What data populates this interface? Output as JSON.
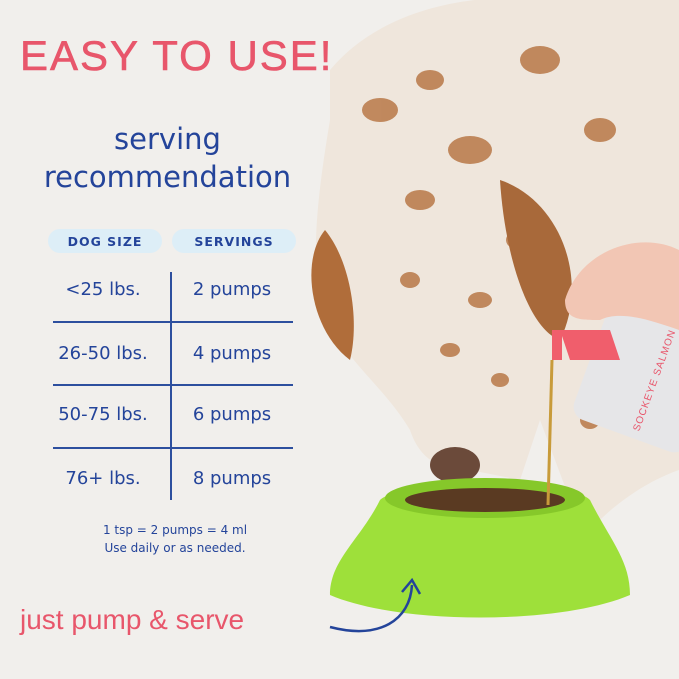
{
  "headline": "EASY TO USE!",
  "subtitle": [
    "serving",
    "recommendation"
  ],
  "table": {
    "headers": [
      "DOG SIZE",
      "SERVINGS"
    ],
    "rows": [
      {
        "size": "<25 lbs.",
        "servings": "2 pumps"
      },
      {
        "size": "26-50  lbs.",
        "servings": "4 pumps"
      },
      {
        "size": "50-75  lbs.",
        "servings": "6 pumps"
      },
      {
        "size": "76+ lbs.",
        "servings": "8 pumps"
      }
    ]
  },
  "notes": [
    "1 tsp = 2 pumps = 4 ml",
    "Use daily or as needed."
  ],
  "cta": "just pump & serve",
  "bottle_label": "SOCKEYE SALMON",
  "colors": {
    "accent_pink": "#e8566b",
    "navy": "#24449a",
    "pill": "#ddeef7",
    "bowl_green": "#9ee03a",
    "background": "#f1efec"
  }
}
